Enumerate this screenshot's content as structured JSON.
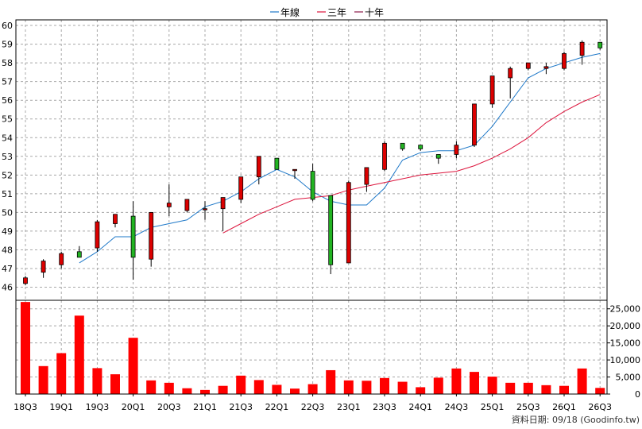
{
  "chart_data": [
    {
      "type": "candlestick",
      "legend": [
        {
          "name": "年線",
          "color": "#1e78c8"
        },
        {
          "name": "三年",
          "color": "#dc143c"
        },
        {
          "name": "十年",
          "color": "#8b1a4a"
        }
      ],
      "ylim": [
        45.3,
        60.3
      ],
      "y_ticks": [
        46,
        47,
        48,
        49,
        50,
        51,
        52,
        53,
        54,
        55,
        56,
        57,
        58,
        59,
        60
      ],
      "up_color": "#dc0000",
      "down_color": "#22b422",
      "candles": [
        {
          "o": 46.2,
          "h": 46.6,
          "l": 46.1,
          "c": 46.5
        },
        {
          "o": 46.8,
          "h": 47.5,
          "l": 46.5,
          "c": 47.4
        },
        {
          "o": 47.2,
          "h": 47.9,
          "l": 47.0,
          "c": 47.8
        },
        {
          "o": 47.9,
          "h": 48.2,
          "l": 47.6,
          "c": 47.6
        },
        {
          "o": 48.1,
          "h": 49.6,
          "l": 47.9,
          "c": 49.5
        },
        {
          "o": 49.4,
          "h": 49.9,
          "l": 49.2,
          "c": 49.9
        },
        {
          "o": 49.8,
          "h": 50.6,
          "l": 46.4,
          "c": 47.6
        },
        {
          "o": 47.5,
          "h": 50.0,
          "l": 47.1,
          "c": 50.0
        },
        {
          "o": 50.3,
          "h": 51.5,
          "l": 49.8,
          "c": 50.5
        },
        {
          "o": 50.1,
          "h": 50.7,
          "l": 50.0,
          "c": 50.7
        },
        {
          "o": 50.2,
          "h": 50.6,
          "l": 49.6,
          "c": 50.2
        },
        {
          "o": 50.2,
          "h": 50.8,
          "l": 49.0,
          "c": 50.8
        },
        {
          "o": 50.7,
          "h": 51.9,
          "l": 50.5,
          "c": 51.9
        },
        {
          "o": 51.9,
          "h": 53.0,
          "l": 51.5,
          "c": 53.0
        },
        {
          "o": 52.9,
          "h": 52.9,
          "l": 52.3,
          "c": 52.3
        },
        {
          "o": 52.3,
          "h": 52.3,
          "l": 51.8,
          "c": 52.3
        },
        {
          "o": 52.2,
          "h": 52.6,
          "l": 50.6,
          "c": 50.7
        },
        {
          "o": 50.9,
          "h": 50.9,
          "l": 46.7,
          "c": 47.2
        },
        {
          "o": 47.3,
          "h": 51.7,
          "l": 47.3,
          "c": 51.6
        },
        {
          "o": 51.5,
          "h": 52.4,
          "l": 51.1,
          "c": 52.4
        },
        {
          "o": 52.3,
          "h": 53.8,
          "l": 52.2,
          "c": 53.7
        },
        {
          "o": 53.7,
          "h": 53.7,
          "l": 53.3,
          "c": 53.4
        },
        {
          "o": 53.6,
          "h": 53.6,
          "l": 53.3,
          "c": 53.4
        },
        {
          "o": 53.1,
          "h": 53.1,
          "l": 52.6,
          "c": 52.9
        },
        {
          "o": 53.1,
          "h": 53.8,
          "l": 52.9,
          "c": 53.6
        },
        {
          "o": 53.6,
          "h": 55.8,
          "l": 53.5,
          "c": 55.8
        },
        {
          "o": 55.8,
          "h": 57.3,
          "l": 55.6,
          "c": 57.3
        },
        {
          "o": 57.2,
          "h": 57.8,
          "l": 56.1,
          "c": 57.7
        },
        {
          "o": 57.7,
          "h": 58.0,
          "l": 57.6,
          "c": 58.0
        },
        {
          "o": 57.7,
          "h": 58.0,
          "l": 57.4,
          "c": 57.8
        },
        {
          "o": 57.7,
          "h": 58.6,
          "l": 57.6,
          "c": 58.5
        },
        {
          "o": 58.4,
          "h": 59.2,
          "l": 57.9,
          "c": 59.1
        },
        {
          "o": 59.1,
          "h": 59.1,
          "l": 58.7,
          "c": 58.8
        }
      ],
      "series": [
        {
          "name": "年線",
          "color": "#1e78c8",
          "values": [
            null,
            null,
            null,
            47.3,
            47.9,
            48.7,
            48.7,
            49.2,
            49.4,
            49.6,
            50.3,
            50.6,
            51.1,
            51.8,
            52.3,
            51.9,
            51.1,
            50.6,
            50.4,
            50.4,
            51.3,
            52.8,
            53.2,
            53.3,
            53.3,
            53.6,
            54.6,
            55.9,
            57.2,
            57.7,
            58.0,
            58.3,
            58.5
          ]
        },
        {
          "name": "三年",
          "color": "#dc143c",
          "values": [
            null,
            null,
            null,
            null,
            null,
            null,
            null,
            null,
            null,
            null,
            null,
            48.9,
            49.4,
            49.9,
            50.3,
            50.7,
            50.8,
            50.9,
            51.2,
            51.4,
            51.6,
            51.8,
            52.0,
            52.1,
            52.2,
            52.5,
            52.9,
            53.4,
            54.0,
            54.8,
            55.4,
            55.9,
            56.3
          ]
        }
      ]
    },
    {
      "type": "bar",
      "name": "volume",
      "color": "#ff0000",
      "ylim": [
        0,
        27500
      ],
      "y_tick_values": [
        0,
        5000,
        10000,
        15000,
        20000,
        25000
      ],
      "y_tick_labels": [
        "0",
        "5,000",
        "10,000",
        "15,000",
        "20,000",
        "25,000"
      ],
      "values": [
        27000,
        8200,
        12000,
        23000,
        7600,
        5800,
        16500,
        4000,
        3300,
        1700,
        1200,
        2400,
        5400,
        4100,
        2700,
        1600,
        2900,
        7000,
        4000,
        3900,
        4700,
        3600,
        2000,
        4800,
        7500,
        6500,
        5100,
        3300,
        3300,
        2600,
        2400,
        7500,
        1800
      ],
      "x_tick_labels": [
        "18Q3",
        "19Q1",
        "19Q3",
        "20Q1",
        "20Q3",
        "21Q1",
        "21Q3",
        "22Q1",
        "22Q3",
        "23Q1",
        "23Q3",
        "24Q1",
        "24Q3",
        "25Q1",
        "25Q3",
        "26Q1",
        "26Q3"
      ]
    }
  ],
  "footer": {
    "text": "資料日期: 09/18  (Goodinfo.tw)"
  }
}
